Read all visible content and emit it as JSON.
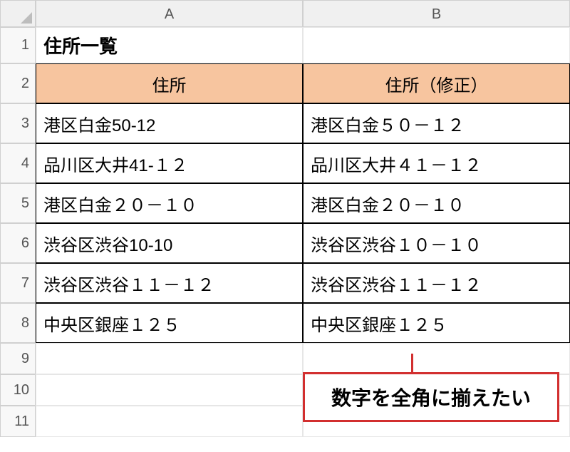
{
  "columns": {
    "A": "A",
    "B": "B"
  },
  "rows": [
    "1",
    "2",
    "3",
    "4",
    "5",
    "6",
    "7",
    "8",
    "9",
    "10",
    "11"
  ],
  "title": "住所一覧",
  "headers": {
    "col_a": "住所",
    "col_b": "住所（修正）"
  },
  "table": {
    "rows": [
      {
        "a": "港区白金50-12",
        "b": "港区白金５０－１２"
      },
      {
        "a": "品川区大井41-１２",
        "b": "品川区大井４１－１２"
      },
      {
        "a": "港区白金２０－１０",
        "b": "港区白金２０－１０"
      },
      {
        "a": "渋谷区渋谷10-10",
        "b": "渋谷区渋谷１０－１０"
      },
      {
        "a": "渋谷区渋谷１１－１２",
        "b": "渋谷区渋谷１１－１２"
      },
      {
        "a": "中央区銀座１２５",
        "b": "中央区銀座１２５"
      }
    ]
  },
  "callout": "数字を全角に揃えたい",
  "colors": {
    "header_bg": "#f7c59f",
    "callout_border": "#d22f2f",
    "grid": "#d0d0d0",
    "data_border": "#000000"
  }
}
